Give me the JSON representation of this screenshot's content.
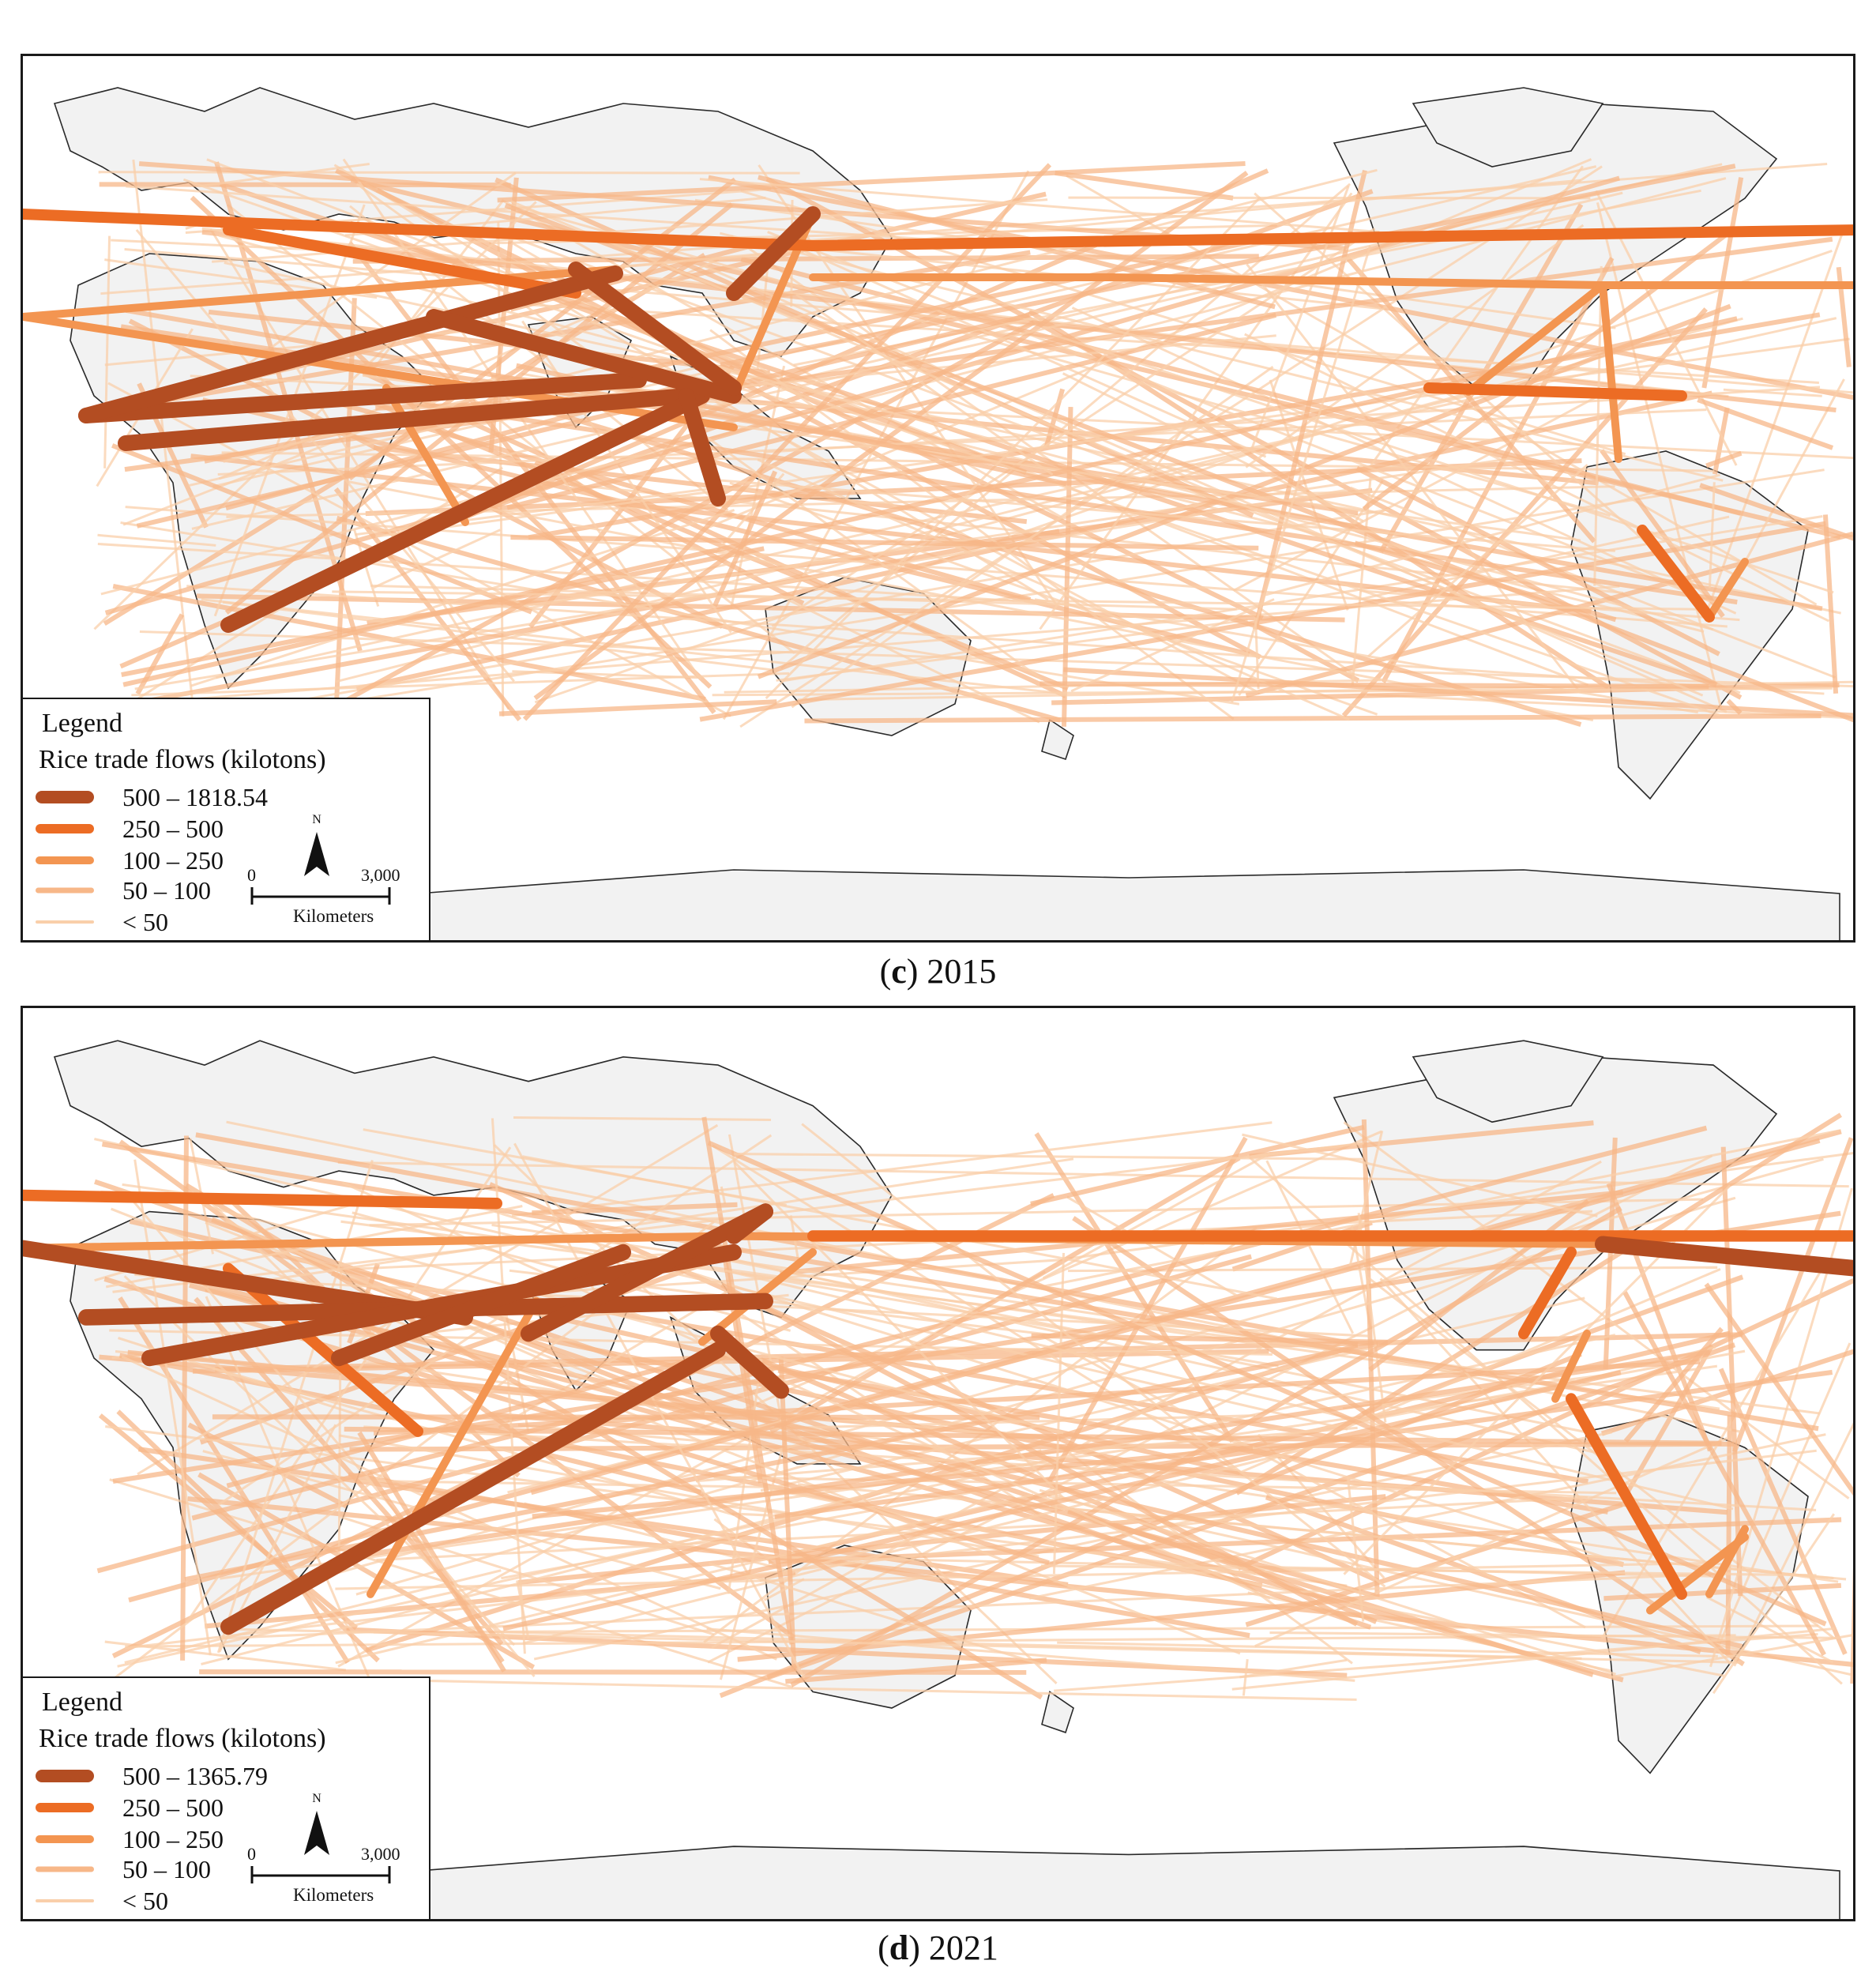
{
  "colors": {
    "class1": "#b34d22",
    "class2": "#ec6c24",
    "class3": "#f39551",
    "class4": "#f7b788",
    "class5": "#f9cfaa",
    "land": "#f2f2f2",
    "border": "#2a2a2a"
  },
  "panels": [
    {
      "caption_letter": "c",
      "caption_year": "2015",
      "legend": {
        "title": "Legend",
        "subtitle": "Rice trade flows (kilotons)",
        "classes": [
          "500 – 1818.54",
          "250 – 500",
          "100 – 250",
          "50 – 100",
          "< 50"
        ]
      },
      "north_label": "N",
      "scale": {
        "tick0": "0",
        "tick1": "3,000",
        "unit": "Kilometers"
      }
    },
    {
      "caption_letter": "d",
      "caption_year": "2021",
      "legend": {
        "title": "Legend",
        "subtitle": "Rice trade flows (kilotons)",
        "classes": [
          "500 – 1365.79",
          "250 – 500",
          "100 – 250",
          "50 – 100",
          "< 50"
        ]
      },
      "north_label": "N",
      "scale": {
        "tick0": "0",
        "tick1": "3,000",
        "unit": "Kilometers"
      }
    }
  ]
}
